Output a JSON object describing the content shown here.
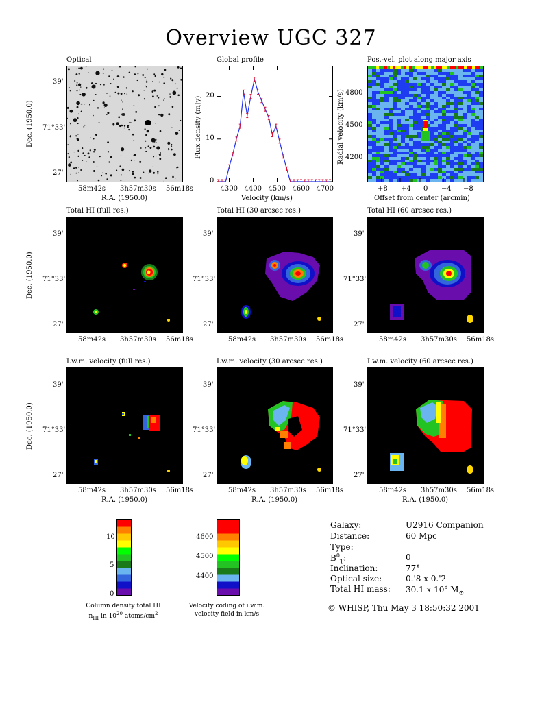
{
  "page": {
    "title": "Overview UGC 327",
    "footer": "© WHISP, Thu May  3 18:50:32 2001"
  },
  "axes": {
    "ra_label": "R.A. (1950.0)",
    "dec_label": "Dec. (1950.0)",
    "ra_ticks": [
      "58m42s",
      "3h57m30s",
      "56m18s"
    ],
    "dec_ticks": [
      "39'",
      "71°33'",
      "27'"
    ]
  },
  "panels": {
    "optical": "Optical",
    "global": "Global profile",
    "posvel": "Pos.-vel. plot along major axis",
    "hi_full": "Total HI (full res.)",
    "hi_30": "Total HI (30 arcsec res.)",
    "hi_60": "Total HI (60 arcsec res.)",
    "vel_full": "I.w.m. velocity (full res.)",
    "vel_30": "I.w.m. velocity (30 arcsec res.)",
    "vel_60": "I.w.m. velocity (60 arcsec res.)"
  },
  "chart_data": [
    {
      "type": "line",
      "title": "Global profile",
      "xlabel": "Velocity (km/s)",
      "ylabel": "Flux density (mJy)",
      "xlim": [
        4250,
        4730
      ],
      "ylim": [
        0,
        27
      ],
      "xticks": [
        4300,
        4400,
        4500,
        4600,
        4700
      ],
      "yticks": [
        0,
        10,
        20
      ],
      "x": [
        4255,
        4270,
        4285,
        4300,
        4315,
        4330,
        4345,
        4360,
        4375,
        4390,
        4405,
        4420,
        4435,
        4450,
        4465,
        4480,
        4495,
        4510,
        4525,
        4540,
        4555,
        4570,
        4585,
        4600,
        4615,
        4630,
        4645,
        4660,
        4675,
        4690,
        4705,
        4720
      ],
      "values": [
        0,
        0,
        0,
        3.5,
        6.5,
        10,
        13,
        21,
        15.5,
        20,
        24,
        21,
        19,
        17,
        15,
        11,
        13,
        9.5,
        6,
        3,
        0,
        0,
        0,
        0,
        0,
        0,
        0,
        0,
        0,
        0,
        0,
        0
      ]
    },
    {
      "type": "heatmap",
      "title": "Pos.-vel. plot along major axis",
      "xlabel": "Offset from center (arcmin)",
      "ylabel": "Radial velocity (km/s)",
      "xticks": [
        "+8",
        "+4",
        "0",
        "−4",
        "−8"
      ],
      "yticks": [
        4200,
        4500,
        4800
      ]
    },
    {
      "type": "bar",
      "title": "Column density total HI",
      "caption_line1": "Column density total HI",
      "caption_line2": "n",
      "caption_sub": "HI",
      "caption_line2b": " in 10",
      "caption_sup": "20",
      "caption_line2c": " atoms/cm",
      "caption_sup2": "2",
      "ticks": [
        0,
        5,
        10
      ],
      "colors": [
        "#6a0dad",
        "#1010c8",
        "#3366dd",
        "#6ab4f0",
        "#1a7a1a",
        "#22c322",
        "#00ff00",
        "#ffff00",
        "#ffc800",
        "#ff7f00",
        "#ff0000"
      ]
    },
    {
      "type": "bar",
      "title": "Velocity coding of i.w.m. velocity field in km/s",
      "caption_line1": "Velocity coding of i.w.m.",
      "caption_line2": "velocity field in km/s",
      "ticks": [
        4400,
        4500,
        4600
      ],
      "colors": [
        "#6a0dad",
        "#1010c8",
        "#6ab4f0",
        "#1a7a1a",
        "#22c322",
        "#00ff00",
        "#ffff00",
        "#ffc800",
        "#ff7f00",
        "#ff0000",
        "#ff0000"
      ]
    }
  ],
  "info": {
    "labels": [
      "Galaxy:",
      "Distance:",
      "Type:",
      "B",
      "Inclination:",
      "Optical size:",
      "Total HI mass:"
    ],
    "b_sup": "0",
    "b_sub": "T",
    "b_colon": ":",
    "values": [
      "U2916 Companion",
      "60 Mpc",
      "",
      "0",
      "77°",
      "0.'8 x 0.'2",
      "30.1 x 10"
    ],
    "mass_exp": "8",
    "mass_unit": " M",
    "mass_sun": "⊙"
  },
  "colors": {
    "profile_line": "#2233ee",
    "profile_err": "#dd1133"
  }
}
